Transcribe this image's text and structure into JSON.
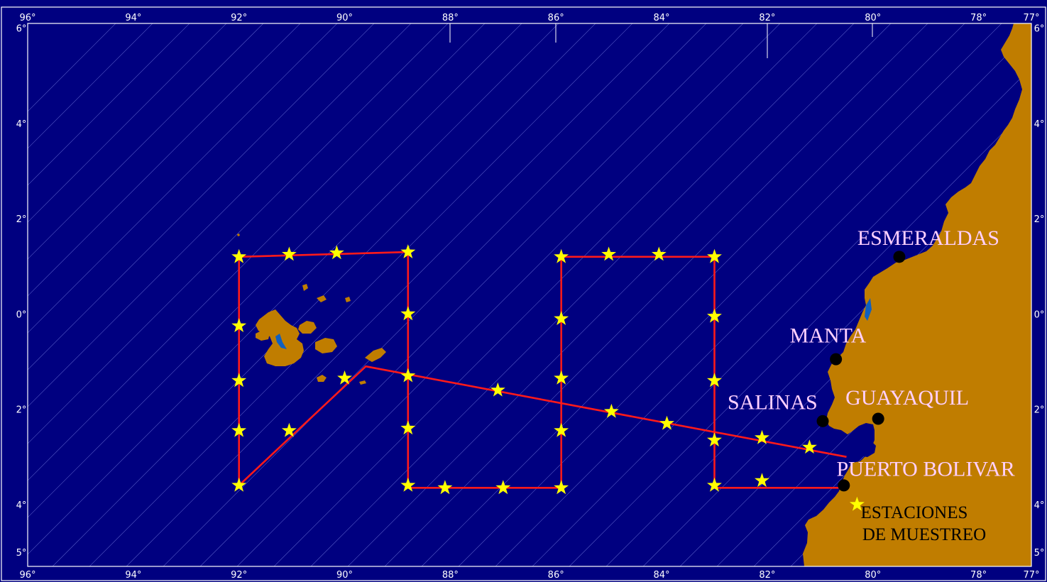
{
  "colors": {
    "ocean": "#000080",
    "land": "#c07d00",
    "lagoon": "#1060c0",
    "route": "#ff1a1a",
    "station": "#ffff00",
    "port": "#000000",
    "frame": "#ffffff",
    "place_label": "#ffd0ff",
    "legend_text": "#000000"
  },
  "map": {
    "lon_range": [
      -96,
      -77
    ],
    "lat_range": [
      5.3,
      -6.1
    ],
    "top_ticks": [
      {
        "lon": -96,
        "label": "96°"
      },
      {
        "lon": -94,
        "label": "94°"
      },
      {
        "lon": -92,
        "label": "92°"
      },
      {
        "lon": -90,
        "label": "90°"
      },
      {
        "lon": -88,
        "label": "88°"
      },
      {
        "lon": -86,
        "label": "86°"
      },
      {
        "lon": -84,
        "label": "84°"
      },
      {
        "lon": -82,
        "label": "82°"
      },
      {
        "lon": -80,
        "label": "80°"
      },
      {
        "lon": -78,
        "label": "78°"
      },
      {
        "lon": -77,
        "label": "77°"
      }
    ],
    "bottom_ticks": [
      {
        "lon": -96,
        "label": "96°"
      },
      {
        "lon": -94,
        "label": "94°"
      },
      {
        "lon": -92,
        "label": "92°"
      },
      {
        "lon": -90,
        "label": "90°"
      },
      {
        "lon": -88,
        "label": "88°"
      },
      {
        "lon": -86,
        "label": "86°"
      },
      {
        "lon": -84,
        "label": "84°"
      },
      {
        "lon": -82,
        "label": "82°"
      },
      {
        "lon": -80,
        "label": "80°"
      },
      {
        "lon": -78,
        "label": "78°"
      },
      {
        "lon": -77,
        "label": "77°"
      }
    ],
    "lat_ticks": [
      {
        "lat": -6.0,
        "label": "6°"
      },
      {
        "lat": -4.0,
        "label": "4°"
      },
      {
        "lat": -2.0,
        "label": "2°"
      },
      {
        "lat": 0.0,
        "label": "0°"
      },
      {
        "lat": 2.0,
        "label": "2°"
      },
      {
        "lat": 4.0,
        "label": "4°"
      },
      {
        "lat": 5.0,
        "label": "5°"
      }
    ],
    "ports": [
      {
        "name": "ESMERALDAS",
        "lon": -79.5,
        "lat": -1.2,
        "label": "ESMERALDAS"
      },
      {
        "name": "MANTA",
        "lon": -80.7,
        "lat": 0.95,
        "label": "MANTA"
      },
      {
        "name": "SALINAS",
        "lon": -80.95,
        "lat": 2.25,
        "label": "SALINAS"
      },
      {
        "name": "GUAYAQUIL",
        "lon": -79.9,
        "lat": 2.2,
        "label": "GUAYAQUIL"
      },
      {
        "name": "PUERTO BOLIVAR",
        "lon": -80.55,
        "lat": 3.6,
        "label": "PUERTO BOLIVAR"
      }
    ],
    "route": [
      [
        -80.5,
        3.65
      ],
      [
        -83.0,
        3.65
      ],
      [
        -83.0,
        -1.2
      ],
      [
        -85.9,
        -1.2
      ],
      [
        -85.9,
        3.65
      ],
      [
        -88.8,
        3.65
      ],
      [
        -88.8,
        -1.3
      ],
      [
        -92.0,
        -1.2
      ],
      [
        -92.0,
        3.6
      ],
      [
        -89.6,
        1.1
      ],
      [
        -80.5,
        3.0
      ]
    ],
    "stations": [
      [
        -92.0,
        -1.2
      ],
      [
        -91.05,
        -1.25
      ],
      [
        -90.15,
        -1.28
      ],
      [
        -88.8,
        -1.3
      ],
      [
        -88.8,
        0.0
      ],
      [
        -88.8,
        1.3
      ],
      [
        -88.8,
        2.4
      ],
      [
        -88.8,
        3.6
      ],
      [
        -88.1,
        3.65
      ],
      [
        -87.0,
        3.65
      ],
      [
        -85.9,
        3.65
      ],
      [
        -85.9,
        2.45
      ],
      [
        -85.9,
        1.35
      ],
      [
        -85.9,
        0.1
      ],
      [
        -85.9,
        -1.2
      ],
      [
        -85.0,
        -1.25
      ],
      [
        -84.05,
        -1.25
      ],
      [
        -83.0,
        -1.2
      ],
      [
        -83.0,
        0.05
      ],
      [
        -83.0,
        1.4
      ],
      [
        -83.0,
        2.65
      ],
      [
        -83.0,
        3.6
      ],
      [
        -82.1,
        3.5
      ],
      [
        -81.2,
        2.8
      ],
      [
        -82.1,
        2.6
      ],
      [
        -83.9,
        2.3
      ],
      [
        -84.95,
        2.05
      ],
      [
        -87.1,
        1.6
      ],
      [
        -90.0,
        1.35
      ],
      [
        -91.05,
        2.45
      ],
      [
        -92.0,
        2.45
      ],
      [
        -92.0,
        1.4
      ],
      [
        -92.0,
        0.25
      ],
      [
        -92.0,
        3.6
      ]
    ],
    "legend": {
      "line1": "ESTACIONES",
      "line2": "DE MUESTREO",
      "lon": -80.3,
      "lat": 4.0
    }
  }
}
